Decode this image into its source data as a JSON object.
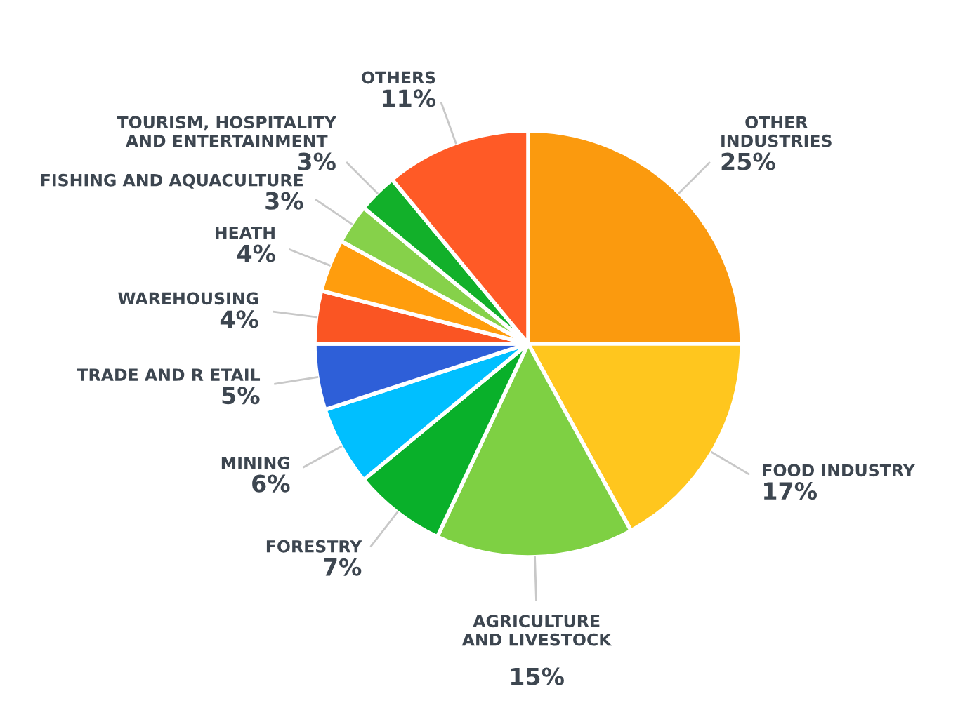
{
  "chart_data": {
    "type": "pie",
    "categories": [
      "OTHER\nINDUSTRIES",
      "FOOD INDUSTRY",
      "AGRICULTURE\nAND LIVESTOCK",
      "FORESTRY",
      "MINING",
      "TRADE AND R ETAIL",
      "WAREHOUSING",
      "HEATH",
      "FISHING AND AQUACULTURE",
      "TOURISM, HOSPITALITY\nAND ENTERTAINMENT",
      "OTHERS"
    ],
    "values": [
      25,
      17,
      15,
      7,
      6,
      5,
      4,
      4,
      3,
      3,
      11
    ],
    "value_labels": [
      "25%",
      "17%",
      "15%",
      "7%",
      "6%",
      "5%",
      "4%",
      "4%",
      "3%",
      "3%",
      "11%"
    ],
    "colors": [
      "#fb9a0e",
      "#ffc61e",
      "#7ed043",
      "#09b02a",
      "#00bfff",
      "#2e5fd8",
      "#fa5523",
      "#ff9d0d",
      "#86d14a",
      "#12b02a",
      "#ff5a26"
    ]
  }
}
